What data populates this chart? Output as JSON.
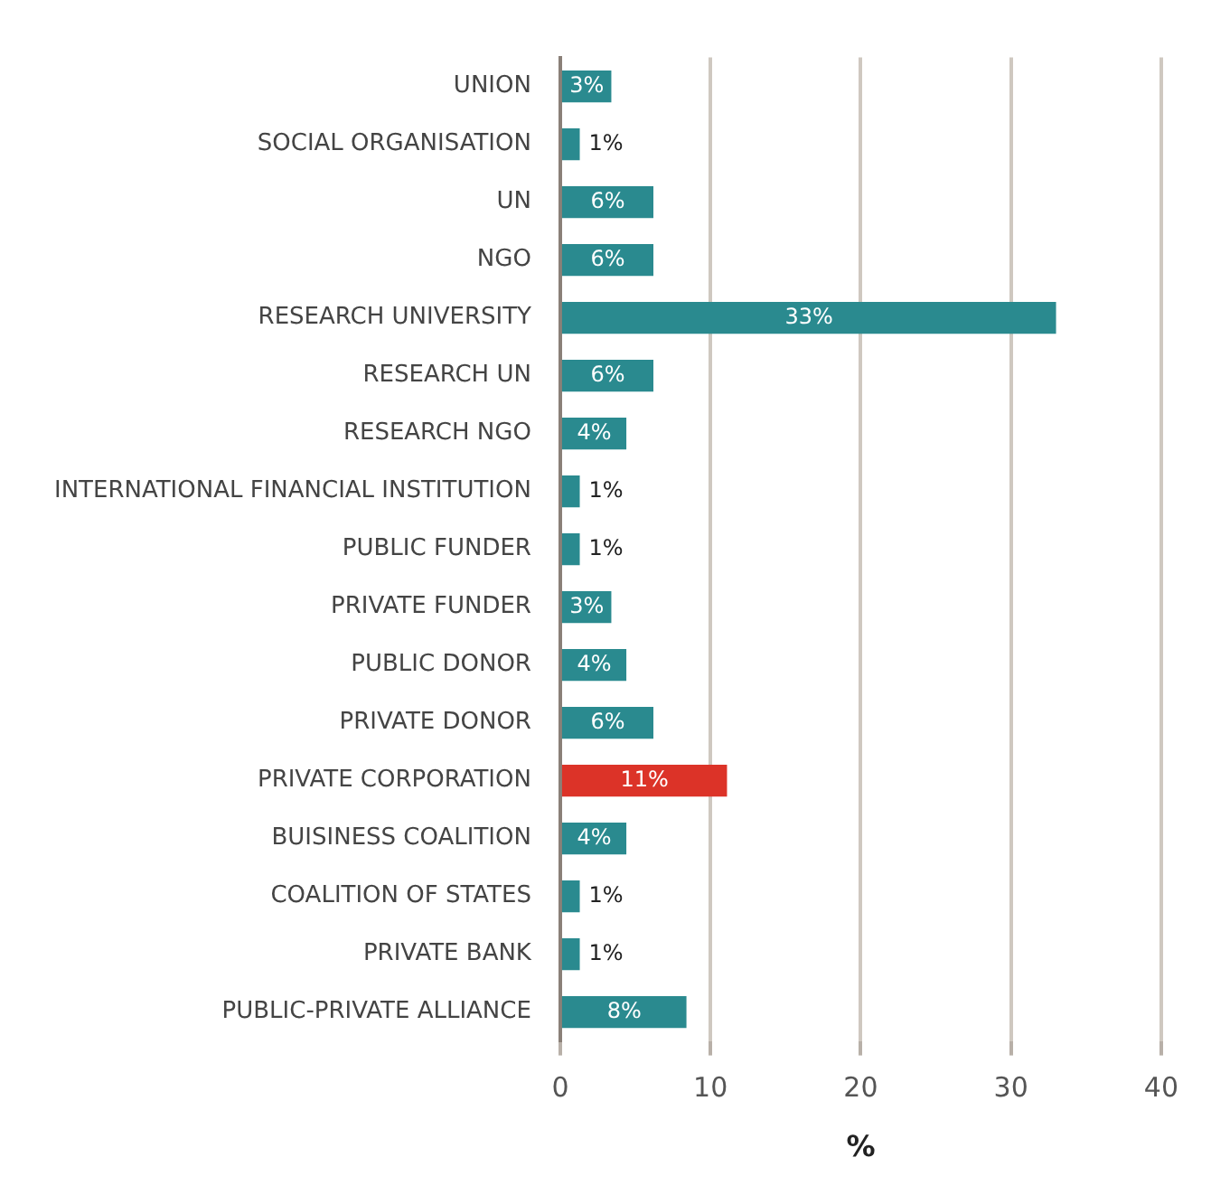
{
  "chart_data": {
    "type": "bar",
    "orientation": "horizontal",
    "xlabel": "%",
    "categories": [
      "UNION",
      "SOCIAL ORGANISATION",
      "UN",
      "NGO",
      "RESEARCH UNIVERSITY",
      "RESEARCH UN",
      "RESEARCH NGO",
      "INTERNATIONAL FINANCIAL INSTITUTION",
      "PUBLIC FUNDER",
      "PRIVATE FUNDER",
      "PUBLIC DONOR",
      "PRIVATE DONOR",
      "PRIVATE CORPORATION",
      "BUISINESS COALITION",
      "COALITION OF STATES",
      "PRIVATE BANK",
      "PUBLIC-PRIVATE ALLIANCE"
    ],
    "values": [
      3.4,
      1.3,
      6.2,
      6.2,
      33,
      6.2,
      4.4,
      1.3,
      1.3,
      3.4,
      4.4,
      6.2,
      11.1,
      4.4,
      1.3,
      1.3,
      8.4
    ],
    "value_labels": [
      "3%",
      "1%",
      "6%",
      "6%",
      "33%",
      "6%",
      "4%",
      "1%",
      "1%",
      "3%",
      "4%",
      "6%",
      "11%",
      "4%",
      "1%",
      "1%",
      "8%"
    ],
    "colors": [
      "#2a8a8f",
      "#2a8a8f",
      "#2a8a8f",
      "#2a8a8f",
      "#2a8a8f",
      "#2a8a8f",
      "#2a8a8f",
      "#2a8a8f",
      "#2a8a8f",
      "#2a8a8f",
      "#2a8a8f",
      "#2a8a8f",
      "#dc3328",
      "#2a8a8f",
      "#2a8a8f",
      "#2a8a8f",
      "#2a8a8f"
    ],
    "xlim": [
      0,
      40
    ],
    "xticks": [
      0,
      10,
      20,
      30,
      40
    ],
    "grid": "x",
    "legend": false
  }
}
